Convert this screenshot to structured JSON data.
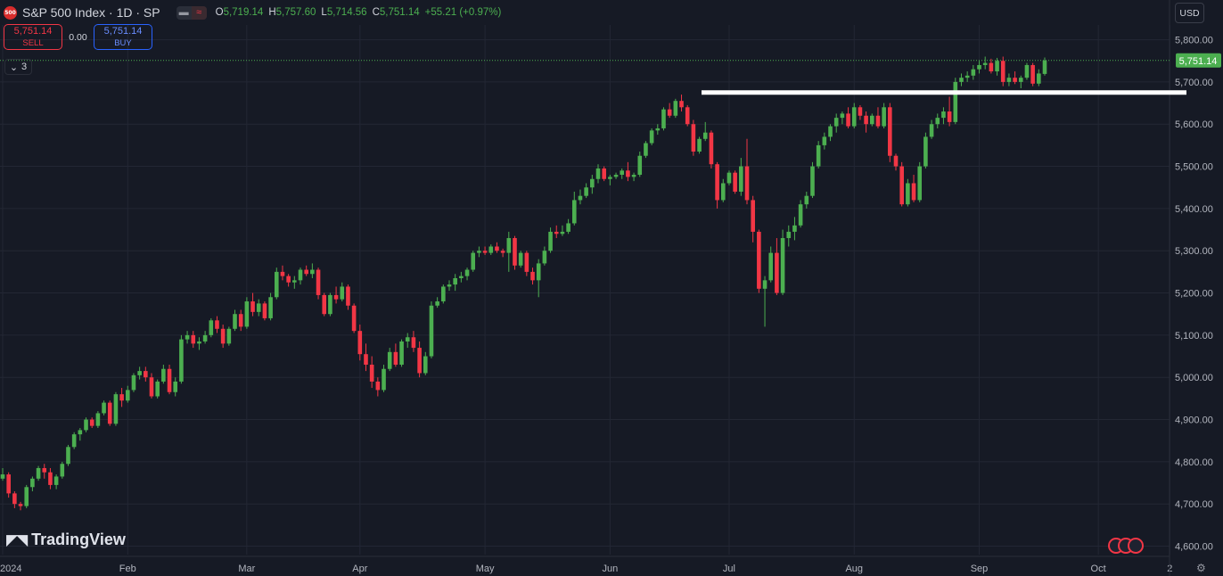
{
  "header": {
    "symbol_icon": "500",
    "title": "S&P 500 Index · 1D · SP",
    "ohlc": {
      "o_label": "O",
      "o": "5,719.14",
      "h_label": "H",
      "h": "5,757.60",
      "l_label": "L",
      "l": "5,714.56",
      "c_label": "C",
      "c": "5,751.14",
      "change": "+55.21 (+0.97%)"
    }
  },
  "trade": {
    "sell_price": "5,751.14",
    "sell_label": "SELL",
    "spread": "0.00",
    "buy_price": "5,751.14",
    "buy_label": "BUY"
  },
  "indicators_collapse": {
    "count": "3"
  },
  "currency": "USD",
  "brand": "TradingView",
  "icons": {
    "collapse": "chevron-down-icon",
    "settings": "gear-icon",
    "calendar": "flag-icon",
    "logo": "tradingview-logo-icon"
  },
  "colors": {
    "up": "#4caf50",
    "down": "#f23645",
    "background": "#161a25",
    "grid": "#232734",
    "last_price": "#4caf50"
  },
  "chart_data": {
    "type": "candlestick",
    "symbol": "S&P 500 Index",
    "interval": "1D",
    "last_price": "5,751.14",
    "ylim": [
      4580,
      5835
    ],
    "yticks": [
      4600,
      4700,
      4800,
      4900,
      5000,
      5100,
      5200,
      5300,
      5400,
      5500,
      5600,
      5700,
      5800
    ],
    "ytick_labels": [
      "4,600.00",
      "4,700.00",
      "4,800.00",
      "4,900.00",
      "5,000.00",
      "5,100.00",
      "5,200.00",
      "5,300.00",
      "5,400.00",
      "5,500.00",
      "5,600.00",
      "5,700.00",
      "5,800.00"
    ],
    "xtick_labels": [
      "2024",
      "Feb",
      "Mar",
      "Apr",
      "May",
      "Jun",
      "Jul",
      "Aug",
      "Sep",
      "Oct",
      "2"
    ],
    "xtick_index": [
      0,
      21,
      41,
      60,
      81,
      102,
      122,
      143,
      164,
      184,
      196
    ],
    "horizontal_line": 5675,
    "candles": [
      [
        4760,
        4785,
        4755,
        4770
      ],
      [
        4770,
        4775,
        4715,
        4725
      ],
      [
        4725,
        4730,
        4690,
        4700
      ],
      [
        4700,
        4705,
        4685,
        4695
      ],
      [
        4695,
        4745,
        4690,
        4740
      ],
      [
        4740,
        4765,
        4730,
        4760
      ],
      [
        4760,
        4790,
        4755,
        4785
      ],
      [
        4785,
        4795,
        4760,
        4775
      ],
      [
        4775,
        4785,
        4735,
        4745
      ],
      [
        4745,
        4770,
        4735,
        4765
      ],
      [
        4765,
        4800,
        4760,
        4795
      ],
      [
        4795,
        4840,
        4790,
        4835
      ],
      [
        4835,
        4870,
        4830,
        4865
      ],
      [
        4865,
        4880,
        4850,
        4875
      ],
      [
        4875,
        4905,
        4870,
        4900
      ],
      [
        4900,
        4905,
        4880,
        4885
      ],
      [
        4885,
        4920,
        4880,
        4915
      ],
      [
        4915,
        4945,
        4910,
        4940
      ],
      [
        4940,
        4945,
        4885,
        4890
      ],
      [
        4890,
        4965,
        4885,
        4960
      ],
      [
        4960,
        4975,
        4930,
        4945
      ],
      [
        4945,
        4980,
        4940,
        4970
      ],
      [
        4970,
        5010,
        4965,
        5005
      ],
      [
        5005,
        5025,
        4995,
        5015
      ],
      [
        5015,
        5025,
        4990,
        5000
      ],
      [
        5000,
        5010,
        4950,
        4955
      ],
      [
        4955,
        4995,
        4950,
        4990
      ],
      [
        4990,
        5030,
        4985,
        5020
      ],
      [
        5020,
        5030,
        4960,
        4965
      ],
      [
        4965,
        5000,
        4955,
        4990
      ],
      [
        4990,
        5100,
        4985,
        5090
      ],
      [
        5090,
        5110,
        5080,
        5100
      ],
      [
        5100,
        5110,
        5070,
        5080
      ],
      [
        5080,
        5095,
        5065,
        5085
      ],
      [
        5085,
        5110,
        5080,
        5100
      ],
      [
        5100,
        5140,
        5095,
        5135
      ],
      [
        5135,
        5145,
        5105,
        5115
      ],
      [
        5115,
        5125,
        5070,
        5080
      ],
      [
        5080,
        5120,
        5075,
        5115
      ],
      [
        5115,
        5160,
        5110,
        5150
      ],
      [
        5150,
        5160,
        5110,
        5120
      ],
      [
        5120,
        5190,
        5115,
        5180
      ],
      [
        5180,
        5200,
        5145,
        5155
      ],
      [
        5155,
        5185,
        5145,
        5175
      ],
      [
        5175,
        5180,
        5135,
        5140
      ],
      [
        5140,
        5200,
        5135,
        5190
      ],
      [
        5190,
        5260,
        5185,
        5250
      ],
      [
        5250,
        5265,
        5230,
        5240
      ],
      [
        5240,
        5245,
        5215,
        5225
      ],
      [
        5225,
        5240,
        5210,
        5230
      ],
      [
        5230,
        5260,
        5220,
        5255
      ],
      [
        5255,
        5265,
        5240,
        5245
      ],
      [
        5245,
        5270,
        5235,
        5255
      ],
      [
        5255,
        5260,
        5185,
        5195
      ],
      [
        5195,
        5200,
        5145,
        5150
      ],
      [
        5150,
        5200,
        5145,
        5195
      ],
      [
        5195,
        5215,
        5175,
        5185
      ],
      [
        5185,
        5225,
        5180,
        5215
      ],
      [
        5215,
        5220,
        5160,
        5170
      ],
      [
        5170,
        5175,
        5105,
        5110
      ],
      [
        5110,
        5125,
        5040,
        5055
      ],
      [
        5055,
        5080,
        5015,
        5030
      ],
      [
        5030,
        5050,
        4975,
        4990
      ],
      [
        4990,
        5000,
        4955,
        4970
      ],
      [
        4970,
        5030,
        4965,
        5020
      ],
      [
        5020,
        5070,
        5015,
        5060
      ],
      [
        5060,
        5080,
        5025,
        5030
      ],
      [
        5030,
        5090,
        5025,
        5085
      ],
      [
        5085,
        5105,
        5070,
        5095
      ],
      [
        5095,
        5110,
        5060,
        5070
      ],
      [
        5070,
        5085,
        5000,
        5010
      ],
      [
        5010,
        5060,
        5005,
        5050
      ],
      [
        5050,
        5180,
        5045,
        5170
      ],
      [
        5170,
        5190,
        5165,
        5180
      ],
      [
        5180,
        5220,
        5175,
        5215
      ],
      [
        5215,
        5230,
        5205,
        5220
      ],
      [
        5220,
        5245,
        5205,
        5235
      ],
      [
        5235,
        5250,
        5225,
        5240
      ],
      [
        5240,
        5260,
        5230,
        5255
      ],
      [
        5255,
        5300,
        5250,
        5295
      ],
      [
        5295,
        5310,
        5285,
        5300
      ],
      [
        5300,
        5310,
        5290,
        5295
      ],
      [
        5295,
        5315,
        5290,
        5310
      ],
      [
        5310,
        5320,
        5295,
        5300
      ],
      [
        5300,
        5305,
        5285,
        5295
      ],
      [
        5295,
        5345,
        5250,
        5330
      ],
      [
        5330,
        5335,
        5255,
        5265
      ],
      [
        5265,
        5300,
        5260,
        5295
      ],
      [
        5295,
        5300,
        5240,
        5250
      ],
      [
        5250,
        5260,
        5220,
        5230
      ],
      [
        5230,
        5280,
        5190,
        5270
      ],
      [
        5270,
        5310,
        5265,
        5300
      ],
      [
        5300,
        5355,
        5295,
        5345
      ],
      [
        5345,
        5360,
        5330,
        5340
      ],
      [
        5340,
        5360,
        5335,
        5345
      ],
      [
        5345,
        5375,
        5340,
        5365
      ],
      [
        5365,
        5440,
        5360,
        5420
      ],
      [
        5420,
        5445,
        5410,
        5430
      ],
      [
        5430,
        5460,
        5425,
        5450
      ],
      [
        5450,
        5480,
        5435,
        5470
      ],
      [
        5470,
        5505,
        5460,
        5495
      ],
      [
        5495,
        5500,
        5465,
        5470
      ],
      [
        5470,
        5480,
        5455,
        5475
      ],
      [
        5475,
        5485,
        5470,
        5480
      ],
      [
        5480,
        5495,
        5470,
        5490
      ],
      [
        5490,
        5510,
        5465,
        5475
      ],
      [
        5475,
        5485,
        5465,
        5480
      ],
      [
        5480,
        5535,
        5475,
        5525
      ],
      [
        5525,
        5560,
        5520,
        5555
      ],
      [
        5555,
        5590,
        5550,
        5585
      ],
      [
        5585,
        5600,
        5575,
        5590
      ],
      [
        5590,
        5640,
        5585,
        5635
      ],
      [
        5635,
        5650,
        5615,
        5620
      ],
      [
        5620,
        5660,
        5615,
        5655
      ],
      [
        5655,
        5670,
        5630,
        5640
      ],
      [
        5640,
        5645,
        5595,
        5600
      ],
      [
        5600,
        5610,
        5525,
        5535
      ],
      [
        5535,
        5570,
        5530,
        5565
      ],
      [
        5565,
        5605,
        5560,
        5580
      ],
      [
        5580,
        5585,
        5495,
        5505
      ],
      [
        5505,
        5510,
        5400,
        5420
      ],
      [
        5420,
        5470,
        5415,
        5460
      ],
      [
        5460,
        5490,
        5455,
        5485
      ],
      [
        5485,
        5490,
        5435,
        5440
      ],
      [
        5440,
        5520,
        5430,
        5500
      ],
      [
        5500,
        5565,
        5410,
        5420
      ],
      [
        5420,
        5430,
        5320,
        5345
      ],
      [
        5345,
        5350,
        5200,
        5210
      ],
      [
        5210,
        5240,
        5120,
        5230
      ],
      [
        5230,
        5310,
        5225,
        5295
      ],
      [
        5295,
        5330,
        5195,
        5200
      ],
      [
        5200,
        5350,
        5195,
        5330
      ],
      [
        5330,
        5360,
        5310,
        5345
      ],
      [
        5345,
        5380,
        5325,
        5360
      ],
      [
        5360,
        5420,
        5355,
        5410
      ],
      [
        5410,
        5440,
        5400,
        5430
      ],
      [
        5430,
        5510,
        5425,
        5500
      ],
      [
        5500,
        5560,
        5495,
        5550
      ],
      [
        5550,
        5580,
        5540,
        5570
      ],
      [
        5570,
        5600,
        5560,
        5595
      ],
      [
        5595,
        5625,
        5580,
        5615
      ],
      [
        5615,
        5630,
        5600,
        5625
      ],
      [
        5625,
        5640,
        5590,
        5595
      ],
      [
        5595,
        5650,
        5590,
        5640
      ],
      [
        5640,
        5645,
        5610,
        5620
      ],
      [
        5620,
        5630,
        5580,
        5600
      ],
      [
        5600,
        5625,
        5595,
        5620
      ],
      [
        5620,
        5640,
        5590,
        5595
      ],
      [
        5595,
        5650,
        5590,
        5640
      ],
      [
        5640,
        5650,
        5510,
        5525
      ],
      [
        5525,
        5530,
        5490,
        5500
      ],
      [
        5500,
        5510,
        5405,
        5410
      ],
      [
        5410,
        5470,
        5405,
        5460
      ],
      [
        5460,
        5480,
        5415,
        5420
      ],
      [
        5420,
        5510,
        5415,
        5500
      ],
      [
        5500,
        5580,
        5495,
        5570
      ],
      [
        5570,
        5610,
        5565,
        5600
      ],
      [
        5600,
        5625,
        5590,
        5615
      ],
      [
        5615,
        5640,
        5600,
        5630
      ],
      [
        5630,
        5665,
        5595,
        5605
      ],
      [
        5605,
        5710,
        5600,
        5700
      ],
      [
        5700,
        5720,
        5690,
        5710
      ],
      [
        5710,
        5725,
        5700,
        5715
      ],
      [
        5715,
        5740,
        5705,
        5730
      ],
      [
        5730,
        5750,
        5720,
        5740
      ],
      [
        5740,
        5760,
        5730,
        5745
      ],
      [
        5745,
        5755,
        5720,
        5725
      ],
      [
        5725,
        5757,
        5715,
        5750
      ],
      [
        5750,
        5760,
        5690,
        5700
      ],
      [
        5700,
        5720,
        5690,
        5710
      ],
      [
        5710,
        5725,
        5695,
        5700
      ],
      [
        5700,
        5715,
        5685,
        5710
      ],
      [
        5710,
        5745,
        5705,
        5740
      ],
      [
        5740,
        5745,
        5690,
        5696
      ],
      [
        5696,
        5730,
        5690,
        5720
      ],
      [
        5719,
        5758,
        5715,
        5751
      ]
    ]
  }
}
